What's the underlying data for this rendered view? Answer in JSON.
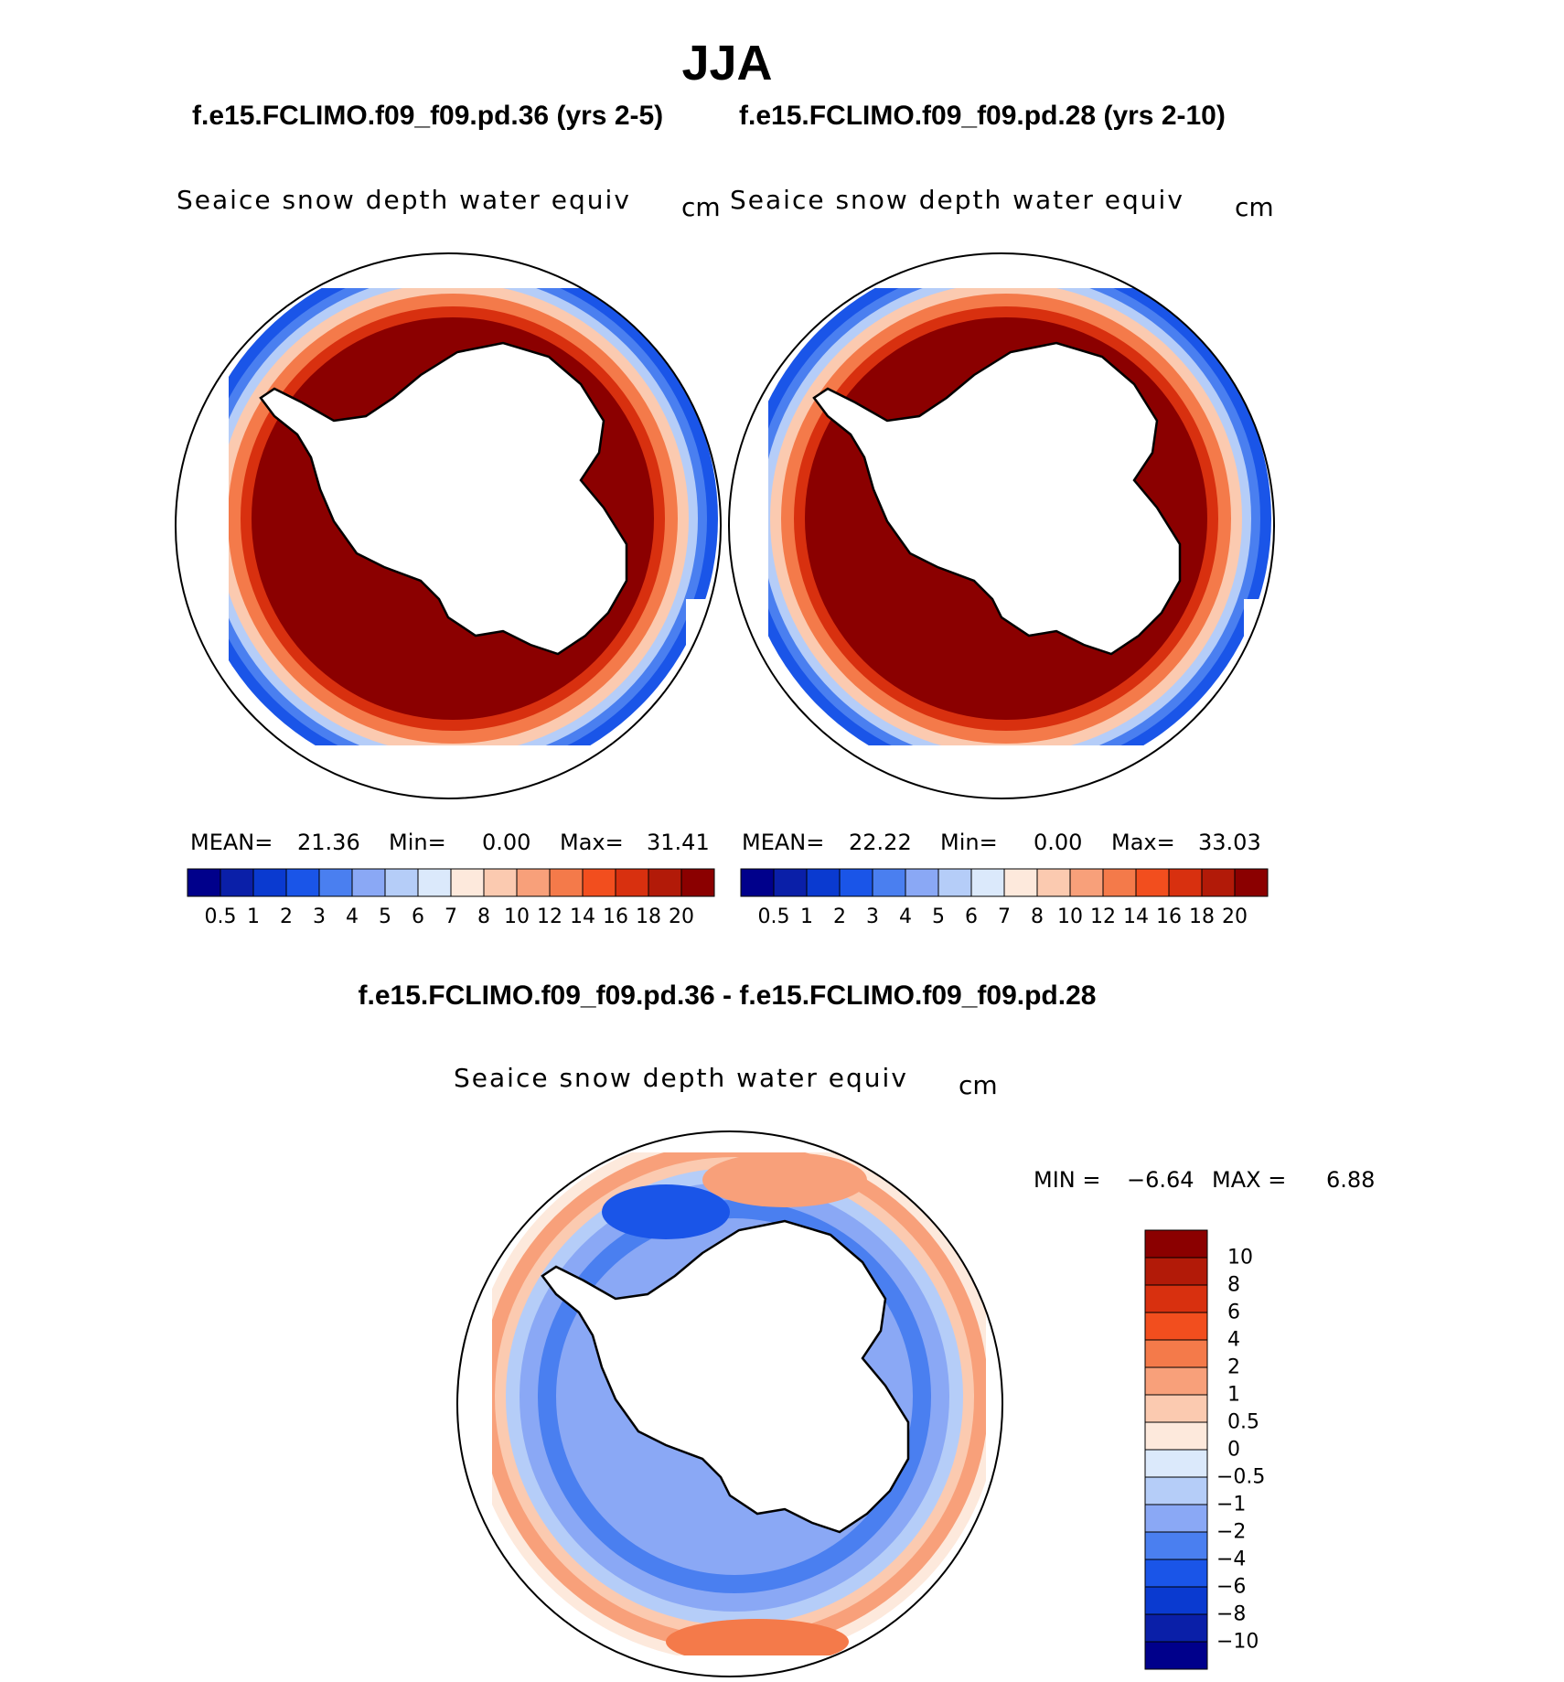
{
  "main_title": "JJA",
  "panels": [
    {
      "case_title": "f.e15.FCLIMO.f09_f09.pd.36 (yrs 2-5)",
      "variable": "Seaice snow depth water equiv",
      "unit": "cm",
      "mean_label": "MEAN=",
      "mean_value": "21.36",
      "min_label": "Min=",
      "min_value": "0.00",
      "max_label": "Max=",
      "max_value": "31.41"
    },
    {
      "case_title": "f.e15.FCLIMO.f09_f09.pd.28 (yrs 2-10)",
      "variable": "Seaice snow depth water equiv",
      "unit": "cm",
      "mean_label": "MEAN=",
      "mean_value": "22.22",
      "min_label": "Min=",
      "min_value": "0.00",
      "max_label": "Max=",
      "max_value": "33.03"
    }
  ],
  "diff_panel": {
    "title": "f.e15.FCLIMO.f09_f09.pd.36 - f.e15.FCLIMO.f09_f09.pd.28",
    "variable": "Seaice snow depth water equiv",
    "unit": "cm",
    "min_label": "MIN =",
    "min_value": "−6.64",
    "max_label": "MAX =",
    "max_value": "6.88"
  },
  "colorbar_horizontal": {
    "colors": [
      "#00008b",
      "#0a1fa8",
      "#0a3ad0",
      "#1a55e8",
      "#4a7ff0",
      "#8aa8f5",
      "#b5cdf8",
      "#dbe9fb",
      "#fde9dc",
      "#fbcab0",
      "#f8a07a",
      "#f47a4a",
      "#f24e1e",
      "#d8300f",
      "#b21a08",
      "#8b0000"
    ],
    "labels": [
      "0.5",
      "1",
      "2",
      "3",
      "4",
      "5",
      "6",
      "7",
      "8",
      "10",
      "12",
      "14",
      "16",
      "18",
      "20"
    ]
  },
  "colorbar_vertical": {
    "colors": [
      "#8b0000",
      "#b21a08",
      "#d8300f",
      "#f24e1e",
      "#f47a4a",
      "#f8a07a",
      "#fbcab0",
      "#fde9dc",
      "#dbe9fb",
      "#b5cdf8",
      "#8aa8f5",
      "#4a7ff0",
      "#1a55e8",
      "#0a3ad0",
      "#0a1fa8",
      "#00008b"
    ],
    "labels": [
      "10",
      "8",
      "6",
      "4",
      "2",
      "1",
      "0.5",
      "0",
      "−0.5",
      "−1",
      "−2",
      "−4",
      "−6",
      "−8",
      "−10"
    ]
  }
}
